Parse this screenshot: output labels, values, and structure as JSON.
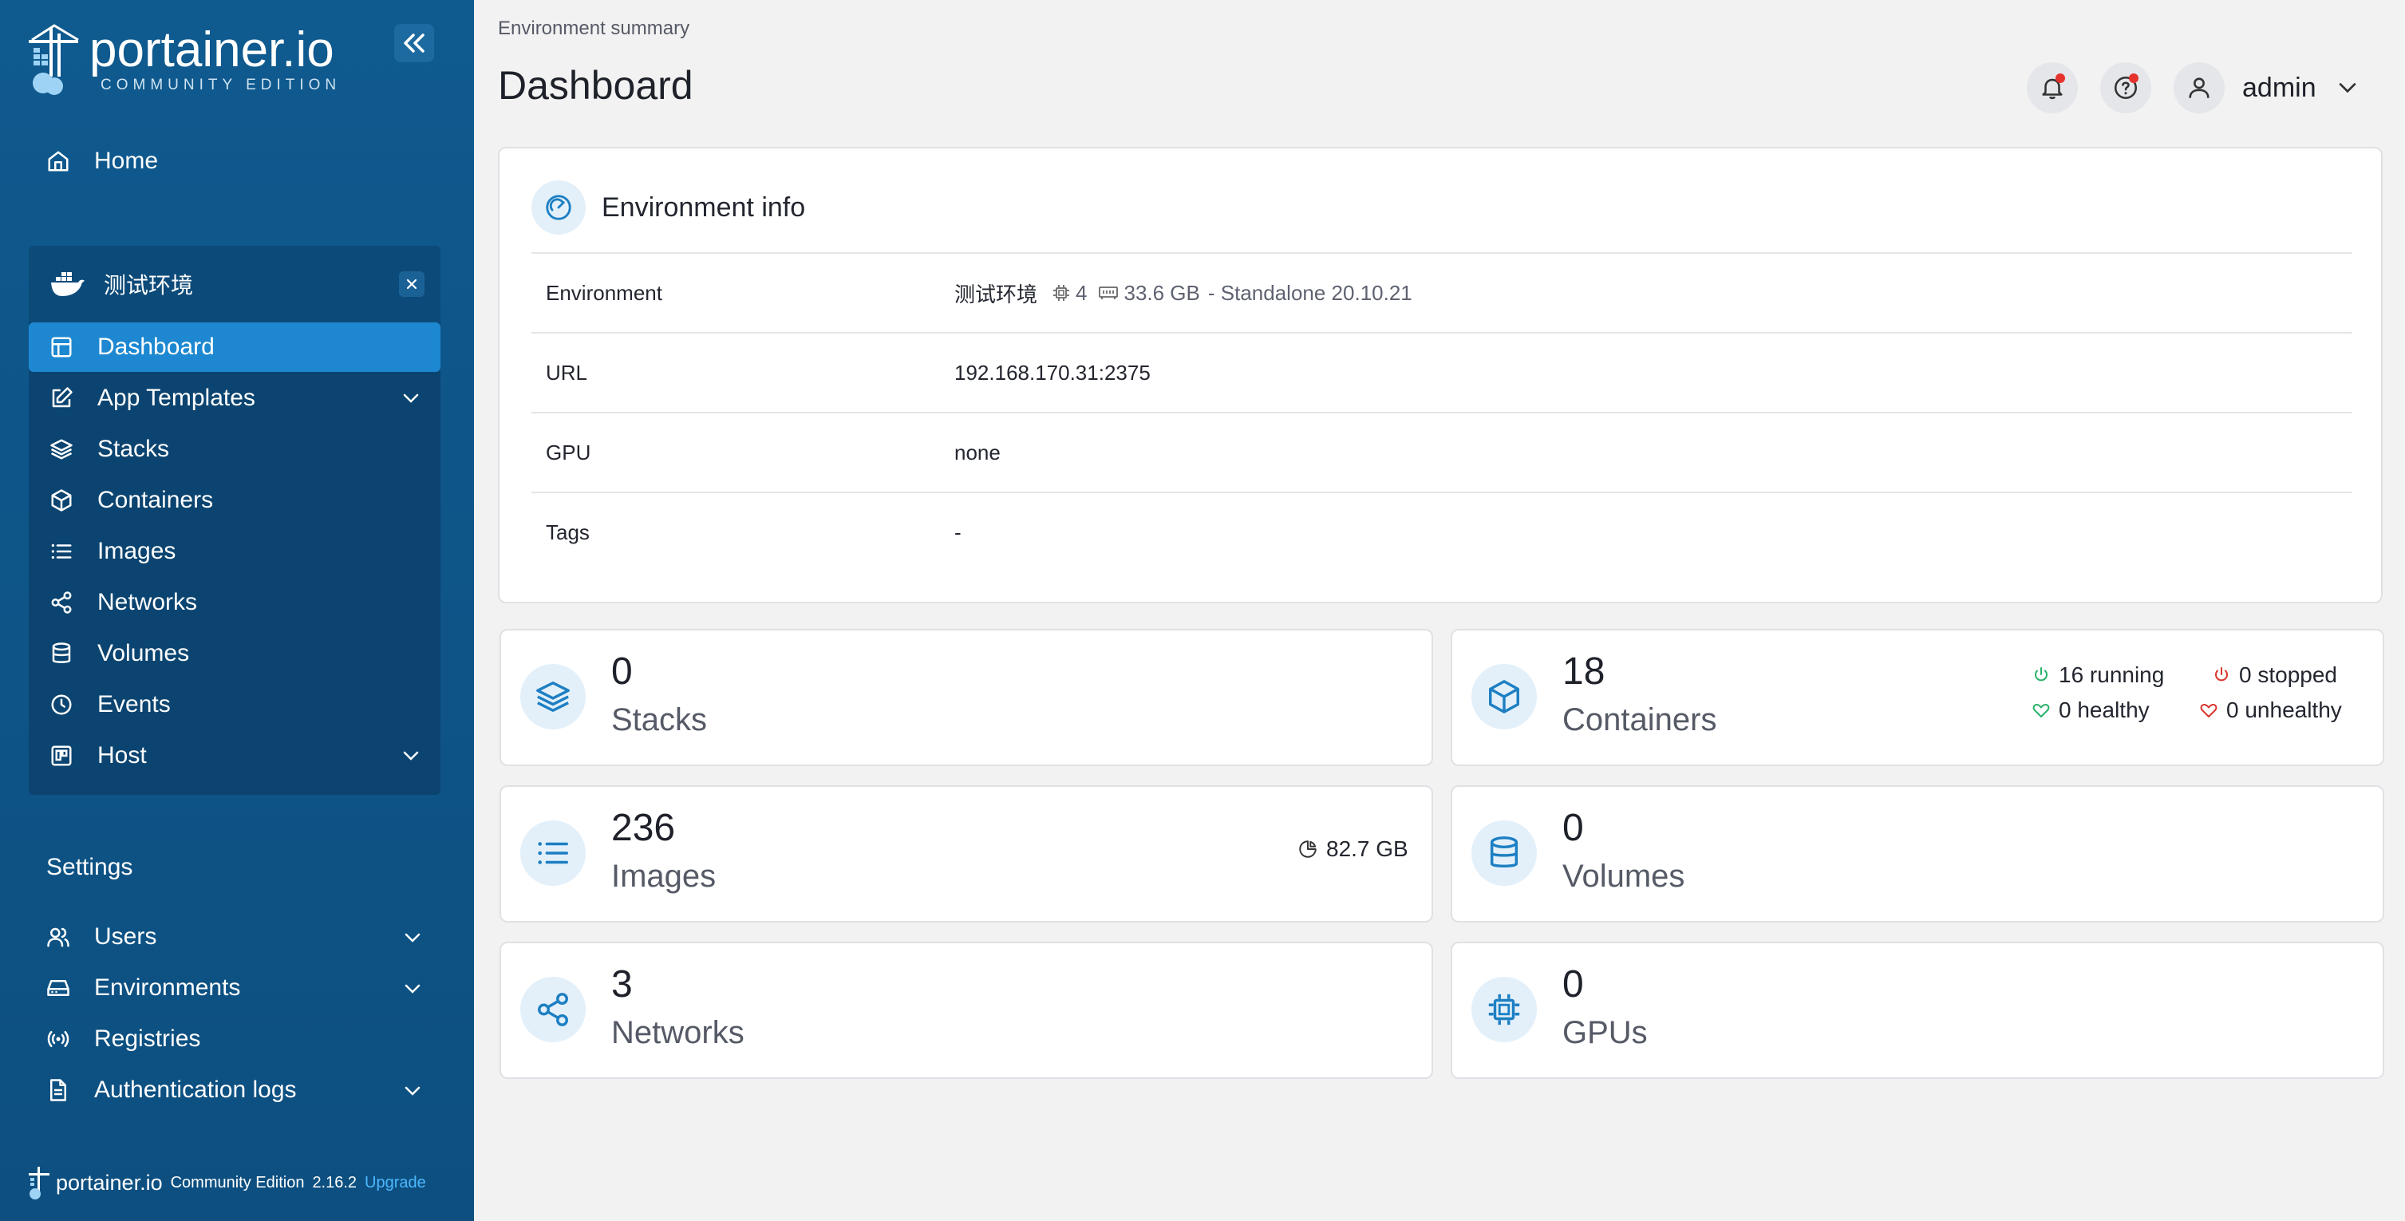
{
  "brand": {
    "title": "portainer.io",
    "subtitle": "COMMUNITY EDITION"
  },
  "sidebar": {
    "home_label": "Home",
    "environment": {
      "name": "测试环境",
      "items": [
        {
          "label": "Dashboard",
          "icon": "dashboard-icon"
        },
        {
          "label": "App Templates",
          "icon": "edit-icon"
        },
        {
          "label": "Stacks",
          "icon": "layers-icon"
        },
        {
          "label": "Containers",
          "icon": "box-icon"
        },
        {
          "label": "Images",
          "icon": "list-icon"
        },
        {
          "label": "Networks",
          "icon": "share-icon"
        },
        {
          "label": "Volumes",
          "icon": "database-icon"
        },
        {
          "label": "Events",
          "icon": "clock-icon"
        },
        {
          "label": "Host",
          "icon": "host-icon"
        }
      ]
    },
    "settings_title": "Settings",
    "settings_items": [
      {
        "label": "Users",
        "icon": "users-icon"
      },
      {
        "label": "Environments",
        "icon": "hdd-icon"
      },
      {
        "label": "Registries",
        "icon": "radio-icon"
      },
      {
        "label": "Authentication logs",
        "icon": "file-icon"
      }
    ],
    "footer": {
      "brand": "portainer.io",
      "edition": "Community Edition",
      "version": "2.16.2",
      "upgrade": "Upgrade"
    }
  },
  "header": {
    "breadcrumb": "Environment summary",
    "title": "Dashboard",
    "user": "admin"
  },
  "environment_info": {
    "title": "Environment info",
    "rows": {
      "environment": {
        "label": "Environment",
        "name": "测试环境",
        "cpu": "4",
        "memory": "33.6 GB",
        "mode": "- Standalone 20.10.21"
      },
      "url": {
        "label": "URL",
        "value": "192.168.170.31:2375"
      },
      "gpu": {
        "label": "GPU",
        "value": "none"
      },
      "tags": {
        "label": "Tags",
        "value": "-"
      }
    }
  },
  "stats": {
    "stacks": {
      "count": "0",
      "label": "Stacks"
    },
    "containers": {
      "count": "18",
      "label": "Containers",
      "running": "16 running",
      "stopped": "0 stopped",
      "healthy": "0 healthy",
      "unhealthy": "0 unhealthy"
    },
    "images": {
      "count": "236",
      "label": "Images",
      "size": "82.7 GB"
    },
    "volumes": {
      "count": "0",
      "label": "Volumes"
    },
    "networks": {
      "count": "3",
      "label": "Networks"
    },
    "gpus": {
      "count": "0",
      "label": "GPUs"
    }
  },
  "colors": {
    "sidebar": "#0f5a8f",
    "active": "#1d88d1",
    "accent": "#1d7fc3",
    "running": "#2ab26b",
    "stopped": "#d9342b"
  }
}
